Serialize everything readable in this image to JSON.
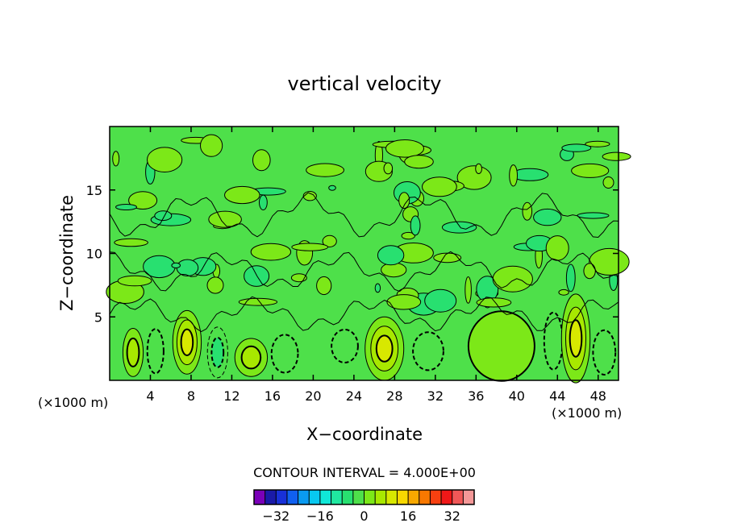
{
  "chart_data": {
    "type": "heatmap",
    "title": "vertical velocity",
    "xlabel": "X−coordinate",
    "ylabel": "Z−coordinate",
    "x_unit_label_left": "(×1000 m)",
    "x_unit_label_right": "(×1000 m)",
    "xlim": [
      0,
      50
    ],
    "ylim": [
      0,
      20
    ],
    "x_ticks": [
      "4",
      "8",
      "12",
      "16",
      "20",
      "24",
      "28",
      "32",
      "36",
      "40",
      "44",
      "48"
    ],
    "y_ticks": [
      "5",
      "10",
      "15"
    ],
    "contour_interval_label": "CONTOUR INTERVAL = 4.000E+00",
    "contour_interval": 4,
    "background_level_color": "#4ee04a",
    "colorbar": {
      "colors": [
        "#7a00b8",
        "#1a1aa8",
        "#1830d8",
        "#1060f0",
        "#0a9af0",
        "#08c8f0",
        "#10e8d8",
        "#20e8a0",
        "#28e070",
        "#4ee04a",
        "#7ce818",
        "#a8e800",
        "#d8e800",
        "#f8d800",
        "#f8a800",
        "#f87800",
        "#f84010",
        "#f01818",
        "#f05858",
        "#f49898"
      ],
      "tick_labels": [
        "−32",
        "−16",
        "0",
        "16",
        "32"
      ],
      "tick_values": [
        -32,
        -16,
        0,
        16,
        32
      ]
    },
    "features": [
      {
        "x": 2.3,
        "z": 2.2,
        "w": 2.0,
        "h": 3.8,
        "peak": 8
      },
      {
        "x": 4.5,
        "z": 2.3,
        "w": 1.6,
        "h": 3.5,
        "peak": -4
      },
      {
        "x": 7.6,
        "z": 3.0,
        "w": 2.8,
        "h": 5.0,
        "peak": 12
      },
      {
        "x": 10.6,
        "z": 2.2,
        "w": 2.0,
        "h": 4.0,
        "peak": -6
      },
      {
        "x": 13.9,
        "z": 1.8,
        "w": 3.2,
        "h": 3.0,
        "peak": 8
      },
      {
        "x": 17.2,
        "z": 2.1,
        "w": 2.6,
        "h": 3.0,
        "peak": -2
      },
      {
        "x": 23.1,
        "z": 2.7,
        "w": 2.6,
        "h": 2.6,
        "peak": -4
      },
      {
        "x": 27.0,
        "z": 2.5,
        "w": 3.8,
        "h": 5.0,
        "peak": 12
      },
      {
        "x": 31.3,
        "z": 2.3,
        "w": 3.0,
        "h": 3.0,
        "peak": -4
      },
      {
        "x": 38.5,
        "z": 2.7,
        "w": 6.5,
        "h": 5.5,
        "peak": 4
      },
      {
        "x": 43.6,
        "z": 3.1,
        "w": 1.8,
        "h": 4.5,
        "peak": -4
      },
      {
        "x": 45.8,
        "z": 3.3,
        "w": 2.8,
        "h": 7.0,
        "peak": 12
      },
      {
        "x": 48.6,
        "z": 2.2,
        "w": 2.2,
        "h": 3.5,
        "peak": -4
      }
    ]
  }
}
